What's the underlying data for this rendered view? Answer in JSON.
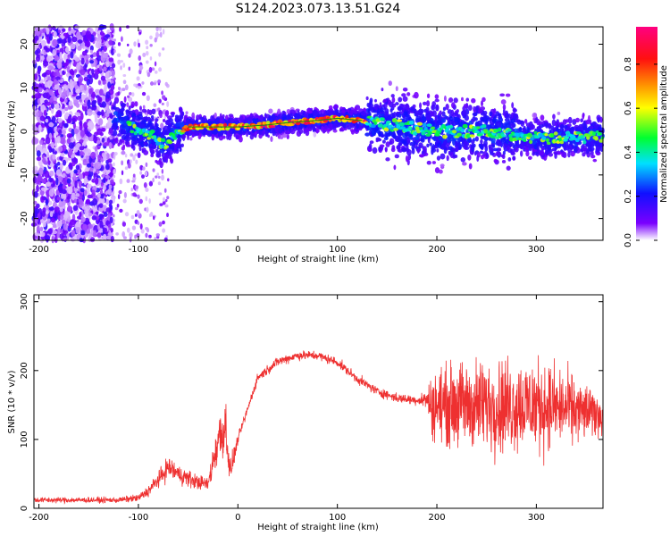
{
  "figure_title": "S124.2023.073.13.51.G24",
  "chart_data": [
    {
      "type": "heatmap",
      "xlabel": "Height of straight line (km)",
      "ylabel": "Frequency (Hz)",
      "xlim": [
        -205,
        367
      ],
      "ylim": [
        -25,
        24
      ],
      "xticks": [
        -200,
        -100,
        0,
        100,
        200,
        300
      ],
      "yticks": [
        -20,
        -10,
        0,
        10,
        20
      ],
      "colorbar": {
        "label": "Normalized spectral amplitude",
        "range": [
          0,
          0.97
        ],
        "ticks": [
          0.0,
          0.2,
          0.4,
          0.6,
          0.8
        ],
        "colormap": "rainbow (purple→blue→cyan→green→yellow→orange→red→magenta)"
      },
      "ridge_line": {
        "x": [
          -120,
          -100,
          -85,
          -75,
          -60,
          -50,
          0,
          30,
          50,
          80,
          100,
          125,
          135,
          170,
          200,
          250,
          300,
          340,
          365
        ],
        "y": [
          3,
          0,
          -1,
          -3,
          0,
          1,
          1,
          1.5,
          2,
          2.5,
          3,
          2.5,
          2,
          1,
          0,
          0,
          -1.5,
          -1.5,
          -1
        ]
      }
    },
    {
      "type": "line",
      "xlabel": "Height of straight line (km)",
      "ylabel": "SNR (10 * v/v)",
      "xlim": [
        -205,
        367
      ],
      "ylim": [
        0,
        310
      ],
      "xticks": [
        -200,
        -100,
        0,
        100,
        200,
        300
      ],
      "yticks": [
        0,
        100,
        200,
        300
      ],
      "color": "#ee3030",
      "envelope": {
        "x": [
          -205,
          -150,
          -120,
          -100,
          -90,
          -75,
          -70,
          -60,
          -45,
          -30,
          -20,
          -12,
          -8,
          0,
          20,
          40,
          60,
          80,
          100,
          120,
          140,
          160,
          180,
          190,
          195,
          220,
          260,
          300,
          330,
          367
        ],
        "mid": [
          12,
          12,
          12,
          15,
          25,
          50,
          60,
          50,
          40,
          35,
          100,
          120,
          50,
          100,
          190,
          213,
          222,
          222,
          212,
          188,
          170,
          160,
          157,
          158,
          150,
          150,
          150,
          150,
          145,
          135
        ],
        "amp": [
          6,
          6,
          6,
          8,
          12,
          20,
          25,
          20,
          18,
          12,
          60,
          60,
          30,
          10,
          10,
          10,
          10,
          10,
          10,
          10,
          10,
          10,
          10,
          20,
          70,
          90,
          100,
          100,
          80,
          40
        ]
      }
    }
  ]
}
